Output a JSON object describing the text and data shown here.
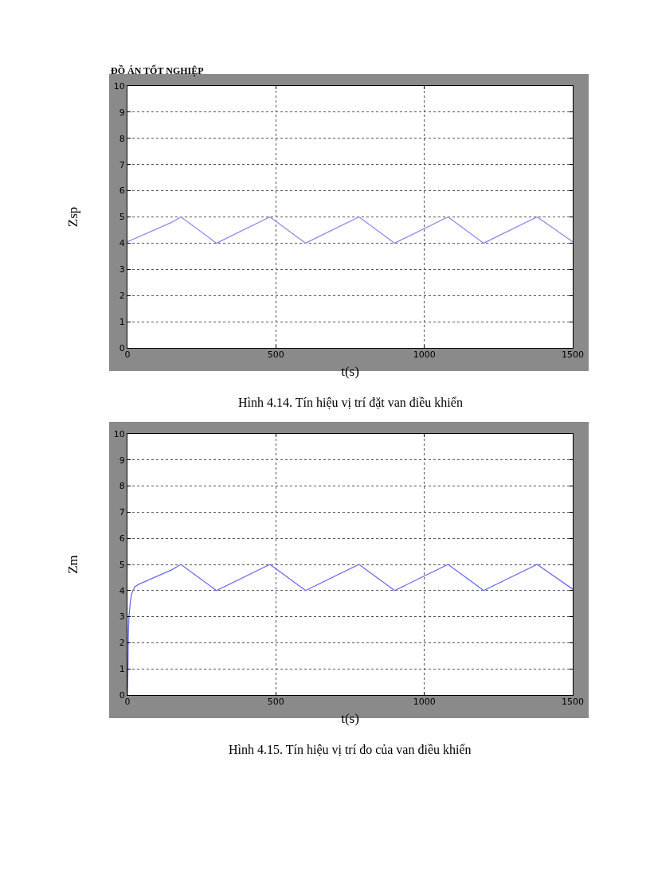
{
  "chart_data": [
    {
      "type": "line",
      "xlabel": "t(s)",
      "ylabel": "Zsp",
      "annotations": [
        "ĐỒ ÁN TỐT NGHIỆP",
        "Hình 4.14. Tín hiệu vị trí đặt van điều khiển"
      ],
      "series": [
        {
          "color": "#8c8cf0",
          "x": [
            0,
            150,
            180,
            300,
            480,
            600,
            780,
            900,
            1080,
            1200,
            1380,
            1500
          ],
          "values": [
            4.05,
            4.8,
            5,
            4,
            5,
            4,
            5,
            4,
            5,
            4,
            5,
            4.05
          ]
        }
      ],
      "xlim": [
        0,
        1500
      ],
      "xticks": [
        0,
        500,
        1000,
        1500
      ],
      "ylim": [
        0,
        10
      ],
      "yticks": [
        0,
        1,
        2,
        3,
        4,
        5,
        6,
        7,
        8,
        9,
        10
      ],
      "grid": true,
      "line_style": "solid",
      "marker": "none"
    },
    {
      "type": "line",
      "xlabel": "t(s)",
      "ylabel": "Zm",
      "annotations": [
        "Hình 4.15. Tín hiệu vị trí đo của van điều khiển"
      ],
      "series": [
        {
          "color": "#6a6af0",
          "x": [
            0,
            2,
            3,
            5,
            10,
            15,
            25,
            40,
            150,
            180,
            300,
            480,
            600,
            780,
            900,
            1080,
            1200,
            1380,
            1500
          ],
          "values": [
            0,
            1.3,
            2.3,
            3,
            3.6,
            3.9,
            4.15,
            4.25,
            4.8,
            5,
            4,
            5,
            4,
            5,
            4,
            5,
            4,
            5,
            4.05
          ]
        }
      ],
      "xlim": [
        0,
        1500
      ],
      "xticks": [
        0,
        500,
        1000,
        1500
      ],
      "ylim": [
        0,
        10
      ],
      "yticks": [
        0,
        1,
        2,
        3,
        4,
        5,
        6,
        7,
        8,
        9,
        10
      ],
      "grid": true,
      "line_style": "solid",
      "marker": "none"
    }
  ]
}
